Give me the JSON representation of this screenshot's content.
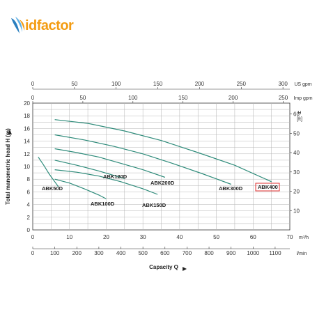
{
  "brand": {
    "logo_text": "idfactor",
    "accent": "#f39c12",
    "wing_color": "#2a7fbf"
  },
  "chart_data": {
    "type": "line",
    "title": "",
    "xlabel": "Capacity Q",
    "ylabel": "Total manometric head H (m)",
    "ylabel_right": "H [ft]",
    "x_unit_main": "m³/h",
    "x_unit_lmin": "l/min",
    "x_unit_usgpm": "US gpm",
    "x_unit_impgpm": "Imp gpm",
    "xlim": [
      0,
      70
    ],
    "ylim": [
      0,
      20
    ],
    "grid": true,
    "x_ticks": [
      "0",
      "10",
      "20",
      "30",
      "40",
      "50",
      "60",
      "70"
    ],
    "y_ticks": [
      "0",
      "2",
      "4",
      "6",
      "8",
      "10",
      "12",
      "14",
      "16",
      "18",
      "20"
    ],
    "y_ticks_ft": [
      "10",
      "20",
      "30",
      "40",
      "50",
      "60"
    ],
    "lmin_ticks": [
      "0",
      "100",
      "200",
      "300",
      "400",
      "500",
      "600",
      "700",
      "800",
      "900",
      "1000",
      "1100"
    ],
    "usgpm_ticks": [
      "0",
      "50",
      "100",
      "150",
      "200",
      "250",
      "300"
    ],
    "impgpm_ticks": [
      "0",
      "50",
      "100",
      "150",
      "200",
      "250"
    ],
    "curve_color": "#2e8b7a",
    "highlight_color": "#e03030",
    "series": [
      {
        "name": "ABK50D",
        "x": [
          1.5,
          3,
          4.5,
          6,
          7
        ],
        "y": [
          11.5,
          10.2,
          8.8,
          7.6,
          6.8
        ]
      },
      {
        "name": "ABK100D",
        "x": [
          6,
          10,
          14,
          18,
          20
        ],
        "y": [
          8,
          7.4,
          6.5,
          5.5,
          4.9
        ]
      },
      {
        "name": "ABK120D",
        "x": [
          6,
          12,
          18,
          25
        ],
        "y": [
          11,
          10.2,
          9.3,
          8.1
        ]
      },
      {
        "name": "ABK150D",
        "x": [
          6,
          12,
          18,
          24,
          30,
          34
        ],
        "y": [
          9.5,
          9.1,
          8.5,
          7.6,
          6.5,
          5.6
        ]
      },
      {
        "name": "ABK200D",
        "x": [
          6,
          12,
          18,
          24,
          30,
          36
        ],
        "y": [
          12.8,
          12.2,
          11.5,
          10.5,
          9.5,
          8.3
        ]
      },
      {
        "name": "ABK300D",
        "x": [
          6,
          14,
          22,
          30,
          38,
          46,
          54
        ],
        "y": [
          15,
          14.2,
          13.2,
          12,
          10.5,
          8.9,
          7.2
        ]
      },
      {
        "name": "ABK400",
        "x": [
          6,
          15,
          25,
          35,
          45,
          55,
          65
        ],
        "y": [
          17.4,
          16.8,
          15.6,
          14.1,
          12.2,
          10.2,
          7.6
        ]
      }
    ],
    "labels": [
      {
        "text": "ABK50D",
        "series": "ABK50D"
      },
      {
        "text": "ABK100D",
        "series": "ABK100D"
      },
      {
        "text": "ABK120D",
        "series": "ABK120D"
      },
      {
        "text": "ABK150D",
        "series": "ABK150D"
      },
      {
        "text": "ABK200D",
        "series": "ABK200D"
      },
      {
        "text": "ABK300D",
        "series": "ABK300D"
      },
      {
        "text": "ABK400",
        "series": "ABK400",
        "highlighted": true
      }
    ]
  }
}
